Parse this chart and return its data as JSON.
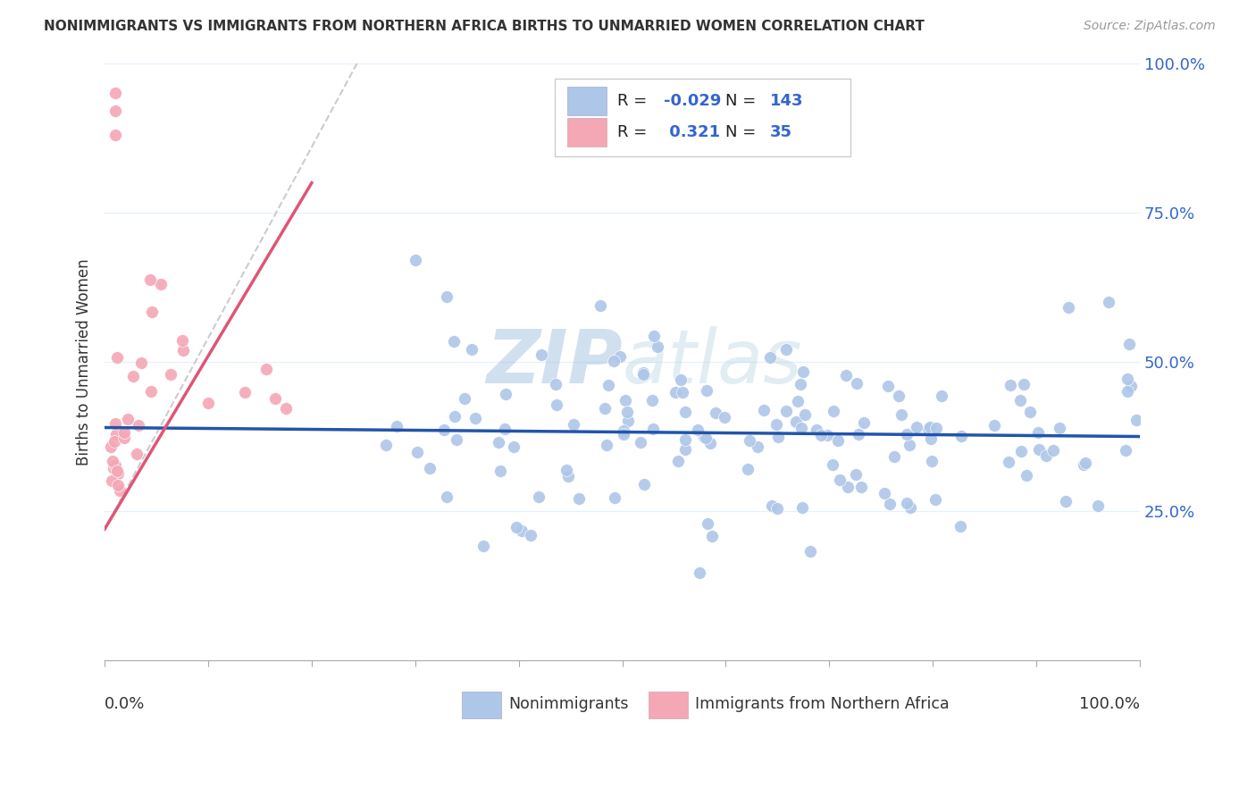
{
  "title": "NONIMMIGRANTS VS IMMIGRANTS FROM NORTHERN AFRICA BIRTHS TO UNMARRIED WOMEN CORRELATION CHART",
  "source": "Source: ZipAtlas.com",
  "ylabel": "Births to Unmarried Women",
  "legend_label1": "Nonimmigrants",
  "legend_label2": "Immigrants from Northern Africa",
  "R1": -0.029,
  "N1": 143,
  "R2": 0.321,
  "N2": 35,
  "color1": "#AEC6E8",
  "color2": "#F4A7B5",
  "trendline1_color": "#2255AA",
  "trendline2_color": "#E05575",
  "trendline_dashed_color": "#CCCCCC",
  "background_color": "#FFFFFF",
  "watermark_color": "#BBDDEE",
  "seed_blue": 123,
  "seed_pink": 77
}
